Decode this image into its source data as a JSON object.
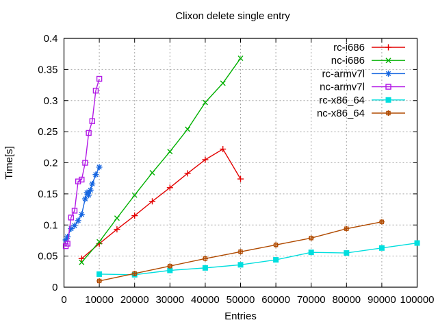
{
  "window": {
    "title": "Clixon delete single entry"
  },
  "chart_data": {
    "type": "line",
    "title": "Clixon delete single entry",
    "xlabel": "Entries",
    "ylabel": "Time[s]",
    "xlim": [
      0,
      100000
    ],
    "ylim": [
      0,
      0.4
    ],
    "grid": "dashed",
    "legend_position": "top-right-inside",
    "background_color": "#ffffff",
    "axis_color": "#000000",
    "grid_color": "#a6a6a6",
    "x_ticks": {
      "values": [
        0,
        10000,
        20000,
        30000,
        40000,
        50000,
        60000,
        70000,
        80000,
        90000,
        100000
      ],
      "labels": [
        "0",
        "10000",
        "20000",
        "30000",
        "40000",
        "50000",
        "60000",
        "70000",
        "80000",
        "90000",
        "100000"
      ]
    },
    "y_ticks": {
      "values": [
        0,
        0.05,
        0.1,
        0.15,
        0.2,
        0.25,
        0.3,
        0.35,
        0.4
      ],
      "labels": [
        "0",
        "0.05",
        "0.1",
        "0.15",
        "0.2",
        "0.25",
        "0.3",
        "0.35",
        "0.4"
      ]
    },
    "series": [
      {
        "name": "rc-i686",
        "color": "#e30000",
        "marker": "plus",
        "points": [
          [
            5000,
            0.046
          ],
          [
            10000,
            0.07
          ],
          [
            15000,
            0.093
          ],
          [
            20000,
            0.115
          ],
          [
            25000,
            0.138
          ],
          [
            30000,
            0.16
          ],
          [
            35000,
            0.183
          ],
          [
            40000,
            0.205
          ],
          [
            45000,
            0.222
          ],
          [
            50000,
            0.174
          ]
        ]
      },
      {
        "name": "nc-i686",
        "color": "#00b000",
        "marker": "cross",
        "points": [
          [
            5000,
            0.04
          ],
          [
            10000,
            0.073
          ],
          [
            15000,
            0.111
          ],
          [
            20000,
            0.148
          ],
          [
            25000,
            0.184
          ],
          [
            30000,
            0.218
          ],
          [
            35000,
            0.254
          ],
          [
            40000,
            0.297
          ],
          [
            45000,
            0.328
          ],
          [
            50000,
            0.368
          ]
        ]
      },
      {
        "name": "rc-armv7l",
        "color": "#1565e0",
        "marker": "star",
        "points": [
          [
            500,
            0.076
          ],
          [
            1000,
            0.081
          ],
          [
            2000,
            0.094
          ],
          [
            3000,
            0.099
          ],
          [
            4000,
            0.107
          ],
          [
            5000,
            0.117
          ],
          [
            6000,
            0.142
          ],
          [
            6500,
            0.152
          ],
          [
            7000,
            0.148
          ],
          [
            7500,
            0.156
          ],
          [
            8000,
            0.166
          ],
          [
            9000,
            0.181
          ],
          [
            10000,
            0.193
          ]
        ]
      },
      {
        "name": "nc-armv7l",
        "color": "#b219e6",
        "marker": "square-open",
        "points": [
          [
            500,
            0.066
          ],
          [
            1000,
            0.07
          ],
          [
            2000,
            0.112
          ],
          [
            3000,
            0.123
          ],
          [
            4000,
            0.17
          ],
          [
            5000,
            0.173
          ],
          [
            6000,
            0.2
          ],
          [
            7000,
            0.248
          ],
          [
            8000,
            0.267
          ],
          [
            9000,
            0.316
          ],
          [
            10000,
            0.335
          ]
        ]
      },
      {
        "name": "rc-x86_64",
        "color": "#00dede",
        "marker": "square-filled",
        "points": [
          [
            10000,
            0.021
          ],
          [
            20000,
            0.02
          ],
          [
            30000,
            0.027
          ],
          [
            40000,
            0.031
          ],
          [
            50000,
            0.036
          ],
          [
            60000,
            0.044
          ],
          [
            70000,
            0.056
          ],
          [
            80000,
            0.055
          ],
          [
            90000,
            0.063
          ],
          [
            100000,
            0.071
          ]
        ]
      },
      {
        "name": "nc-x86_64",
        "color": "#b04a00",
        "marker": "boxplus",
        "points": [
          [
            10000,
            0.01
          ],
          [
            20000,
            0.022
          ],
          [
            30000,
            0.034
          ],
          [
            40000,
            0.046
          ],
          [
            50000,
            0.057
          ],
          [
            60000,
            0.068
          ],
          [
            70000,
            0.079
          ],
          [
            80000,
            0.094
          ],
          [
            90000,
            0.105
          ]
        ]
      }
    ]
  }
}
